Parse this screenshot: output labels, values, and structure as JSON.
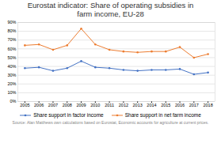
{
  "chart_data": {
    "type": "line",
    "title": "Eurostat indicator: Share of operating subsidies in\nfarm income, EU-28",
    "x": [
      2005,
      2006,
      2007,
      2008,
      2009,
      2010,
      2011,
      2012,
      2013,
      2014,
      2015,
      2016,
      2017,
      2018
    ],
    "series": [
      {
        "name": "Share support in factor income",
        "color": "#4472c4",
        "marker": "circle",
        "values": [
          38,
          39,
          35,
          38,
          46,
          39,
          38,
          36,
          35,
          36,
          36,
          37,
          31,
          33
        ]
      },
      {
        "name": "Share support in net farm income",
        "color": "#ed7d31",
        "marker": "circle",
        "values": [
          64,
          65,
          59,
          64,
          83,
          65,
          59,
          57,
          56,
          57,
          57,
          62,
          50,
          54
        ]
      }
    ],
    "xlim": [
      2004.5,
      2018.5
    ],
    "xticks": [
      2005,
      2006,
      2007,
      2008,
      2009,
      2010,
      2011,
      2012,
      2013,
      2014,
      2015,
      2016,
      2017,
      2018
    ],
    "ylim": [
      0,
      90
    ],
    "yticks": [
      {
        "value": 0,
        "label": "0%"
      },
      {
        "value": 10,
        "label": "10%"
      },
      {
        "value": 20,
        "label": "20%"
      },
      {
        "value": 30,
        "label": "30%"
      },
      {
        "value": 40,
        "label": "40%"
      },
      {
        "value": 50,
        "label": "50%"
      },
      {
        "value": 60,
        "label": "60%"
      },
      {
        "value": 70,
        "label": "70%"
      },
      {
        "value": 80,
        "label": "80%"
      },
      {
        "value": 90,
        "label": "90%"
      }
    ],
    "grid": true,
    "legend": "bottom",
    "annotations": [
      "Source:  Alan Matthews own calculations based on Eurostat, Economic accounts for agriculture at current prices."
    ]
  }
}
